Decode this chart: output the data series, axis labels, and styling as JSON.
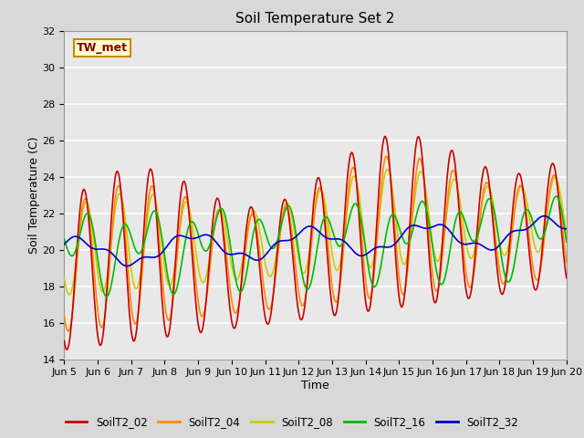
{
  "title": "Soil Temperature Set 2",
  "xlabel": "Time",
  "ylabel": "Soil Temperature (C)",
  "ylim": [
    14,
    32
  ],
  "xlim_days": [
    5,
    20
  ],
  "series_colors": {
    "SoilT2_02": "#cc0000",
    "SoilT2_04": "#ff8800",
    "SoilT2_08": "#cccc00",
    "SoilT2_16": "#00bb00",
    "SoilT2_32": "#0000cc"
  },
  "annotation_text": "TW_met",
  "annotation_bg": "#ffffcc",
  "annotation_border": "#cc8800",
  "fig_bg": "#d8d8d8",
  "plot_bg": "#e8e8e8",
  "grid_color": "#ffffff",
  "tick_labels": [
    "Jun 5",
    "Jun 6",
    "Jun 7",
    "Jun 8",
    "Jun 9",
    "Jun 10",
    "Jun 11",
    "Jun 12",
    "Jun 13",
    "Jun 14",
    "Jun 15",
    "Jun 16",
    "Jun 17",
    "Jun 18",
    "Jun 19",
    "Jun 20"
  ],
  "legend_entries": [
    "SoilT2_02",
    "SoilT2_04",
    "SoilT2_08",
    "SoilT2_16",
    "SoilT2_32"
  ],
  "linewidth": 1.2
}
